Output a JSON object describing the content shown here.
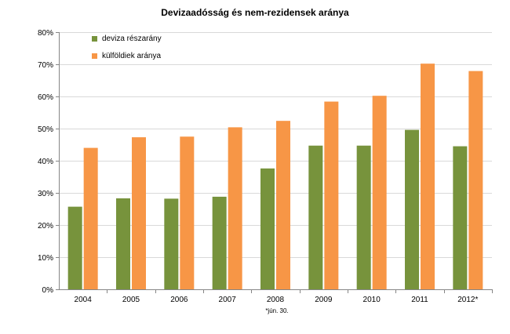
{
  "chart_data": {
    "type": "bar",
    "title": "Devizaadósság és nem-rezidensek aránya",
    "categories": [
      "2004",
      "2005",
      "2006",
      "2007",
      "2008",
      "2009",
      "2010",
      "2011",
      "2012*"
    ],
    "series": [
      {
        "name": "deviza részarány",
        "color": "#77933C",
        "values": [
          25.7,
          28.3,
          28.2,
          28.8,
          37.6,
          44.7,
          44.7,
          49.6,
          44.5
        ]
      },
      {
        "name": "külföldiek aránya",
        "color": "#F79646",
        "values": [
          44.0,
          47.3,
          47.5,
          50.4,
          52.4,
          58.4,
          60.2,
          70.2,
          67.9
        ]
      }
    ],
    "ylim": [
      0,
      80
    ],
    "ytick_labels": [
      "0%",
      "10%",
      "20%",
      "30%",
      "40%",
      "50%",
      "60%",
      "70%",
      "80%"
    ],
    "gridlines": true,
    "legend_position": "top-left",
    "xlabel": "",
    "ylabel": "",
    "footnote": "*jún. 30."
  }
}
